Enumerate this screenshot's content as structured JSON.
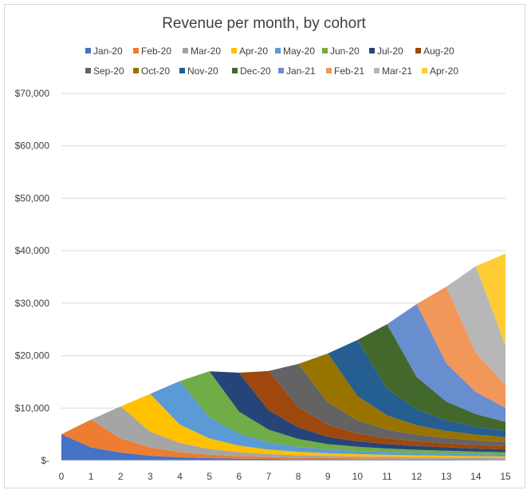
{
  "chart_data": {
    "type": "area",
    "stacked": true,
    "title": "Revenue per month, by cohort",
    "xlabel": "",
    "ylabel": "",
    "x": [
      0,
      1,
      2,
      3,
      4,
      5,
      6,
      7,
      8,
      9,
      10,
      11,
      12,
      13,
      14,
      15
    ],
    "ylim": [
      0,
      70000
    ],
    "y_ticks": [
      0,
      10000,
      20000,
      30000,
      40000,
      50000,
      60000,
      70000
    ],
    "y_tick_labels": [
      "$-",
      "$10,000",
      "$20,000",
      "$30,000",
      "$40,000",
      "$50,000",
      "$60,000",
      "$70,000"
    ],
    "grid": true,
    "legend_position": "top",
    "series": [
      {
        "name": "Jan-20",
        "color": "#4472C4",
        "values": [
          5000,
          2500,
          1500,
          900,
          600,
          450,
          350,
          300,
          250,
          220,
          200,
          180,
          160,
          150,
          140,
          130
        ]
      },
      {
        "name": "Feb-20",
        "color": "#ED7D31",
        "values": [
          0,
          5300,
          2700,
          1600,
          950,
          650,
          480,
          370,
          310,
          270,
          240,
          210,
          190,
          170,
          160,
          150
        ]
      },
      {
        "name": "Mar-20",
        "color": "#A5A5A5",
        "values": [
          0,
          0,
          6100,
          3000,
          1800,
          1100,
          750,
          550,
          450,
          380,
          330,
          300,
          270,
          250,
          230,
          210
        ]
      },
      {
        "name": "Apr-20",
        "color": "#FFC000",
        "values": [
          0,
          0,
          0,
          7200,
          3500,
          2000,
          1250,
          850,
          650,
          520,
          450,
          400,
          360,
          330,
          300,
          280
        ]
      },
      {
        "name": "May-20",
        "color": "#5B9BD5",
        "values": [
          0,
          0,
          0,
          0,
          8300,
          4000,
          2300,
          1400,
          950,
          720,
          600,
          520,
          460,
          420,
          380,
          350
        ]
      },
      {
        "name": "Jun-20",
        "color": "#70AD47",
        "values": [
          0,
          0,
          0,
          0,
          0,
          8800,
          4200,
          2400,
          1500,
          1000,
          800,
          680,
          600,
          540,
          490,
          450
        ]
      },
      {
        "name": "Jul-20",
        "color": "#264478",
        "values": [
          0,
          0,
          0,
          0,
          0,
          0,
          7400,
          3700,
          2200,
          1400,
          1050,
          850,
          730,
          650,
          580,
          530
        ]
      },
      {
        "name": "Aug-20",
        "color": "#9E480E",
        "values": [
          0,
          0,
          0,
          0,
          0,
          0,
          0,
          7500,
          3900,
          2300,
          1500,
          1100,
          900,
          780,
          700,
          630
        ]
      },
      {
        "name": "Sep-20",
        "color": "#636363",
        "values": [
          0,
          0,
          0,
          0,
          0,
          0,
          0,
          0,
          8200,
          4300,
          2500,
          1650,
          1250,
          1000,
          870,
          780
        ]
      },
      {
        "name": "Oct-20",
        "color": "#997300",
        "values": [
          0,
          0,
          0,
          0,
          0,
          0,
          0,
          0,
          0,
          9300,
          4600,
          2700,
          1800,
          1350,
          1100,
          950
        ]
      },
      {
        "name": "Nov-20",
        "color": "#255E91",
        "values": [
          0,
          0,
          0,
          0,
          0,
          0,
          0,
          0,
          0,
          0,
          10700,
          5100,
          3000,
          2000,
          1500,
          1200
        ]
      },
      {
        "name": "Dec-20",
        "color": "#43682B",
        "values": [
          0,
          0,
          0,
          0,
          0,
          0,
          0,
          0,
          0,
          0,
          0,
          12300,
          6200,
          3600,
          2400,
          1700
        ]
      },
      {
        "name": "Jan-21",
        "color": "#698ED0",
        "values": [
          0,
          0,
          0,
          0,
          0,
          0,
          0,
          0,
          0,
          0,
          0,
          0,
          13900,
          7300,
          4200,
          2700
        ]
      },
      {
        "name": "Feb-21",
        "color": "#F1975A",
        "values": [
          0,
          0,
          0,
          0,
          0,
          0,
          0,
          0,
          0,
          0,
          0,
          0,
          0,
          14600,
          7500,
          4300
        ]
      },
      {
        "name": "Mar-21",
        "color": "#B7B7B7",
        "values": [
          0,
          0,
          0,
          0,
          0,
          0,
          0,
          0,
          0,
          0,
          0,
          0,
          0,
          0,
          16500,
          7600
        ]
      },
      {
        "name": "Apr-20",
        "color": "#FFCD33",
        "values": [
          0,
          0,
          0,
          0,
          0,
          0,
          0,
          0,
          0,
          0,
          0,
          0,
          0,
          0,
          0,
          17500
        ]
      }
    ]
  }
}
